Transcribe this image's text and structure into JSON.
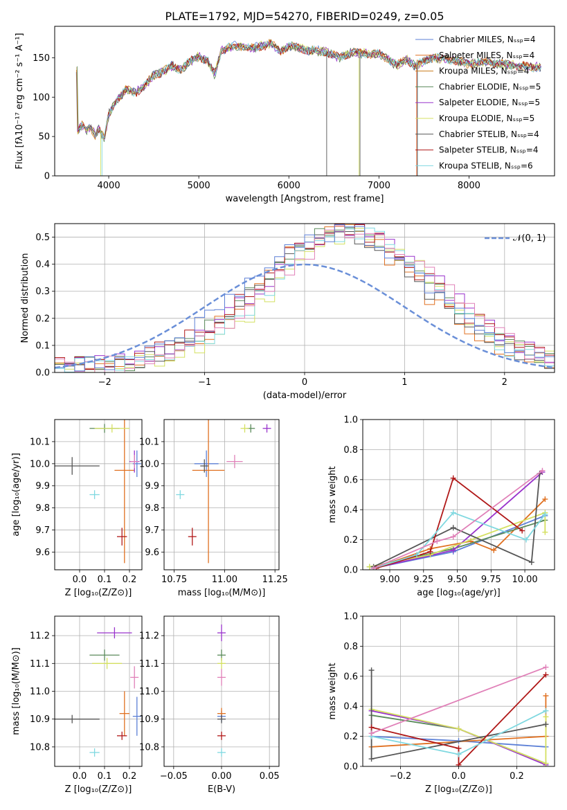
{
  "title": "PLATE=1792, MJD=54270, FIBERID=0249, z=0.05",
  "colors": {
    "c0": "#5b7fd6",
    "c1": "#e07020",
    "c2": "#c87a1a",
    "c3": "#5a8a5a",
    "c4": "#9932cc",
    "c5": "#d4e060",
    "c6": "#555555",
    "c7": "#b01818",
    "c8": "#7fd8e0",
    "c9": "#e080b8",
    "normal": "#6a8fd8",
    "grid": "#b0b0b0"
  },
  "chart_data": [
    {
      "type": "line",
      "xlabel": "wavelength [Angstrom, rest frame]",
      "ylabel": "Flux [fλ10⁻¹⁷ erg cm⁻² s⁻¹ A⁻¹]",
      "xlim": [
        3400,
        8950
      ],
      "ylim": [
        0,
        190
      ],
      "xticks": [
        "4000",
        "5000",
        "6000",
        "7000",
        "8000"
      ],
      "yticks": [
        "0",
        "50",
        "100",
        "150"
      ],
      "grid": false,
      "legend_position": "top-right",
      "legend": [
        "Chabrier MILES, Nₛₛₚ=4",
        "Salpeter MILES, Nₛₛₚ=4",
        "Kroupa MILES, Nₛₛₚ=4",
        "Chabrier ELODIE, Nₛₛₚ=5",
        "Salpeter ELODIE, Nₛₛₚ=5",
        "Kroupa ELODIE, Nₛₛₚ=5",
        "Chabrier STELIB, Nₛₛₚ=4",
        "Salpeter STELIB, Nₛₛₚ=4",
        "Kroupa STELIB, Nₛₛₚ=6"
      ],
      "spectrum_anchor_points": [
        [
          3650,
          55
        ],
        [
          3700,
          65
        ],
        [
          3750,
          58
        ],
        [
          3800,
          62
        ],
        [
          3850,
          52
        ],
        [
          3900,
          60
        ],
        [
          3950,
          45
        ],
        [
          4000,
          78
        ],
        [
          4100,
          98
        ],
        [
          4200,
          110
        ],
        [
          4300,
          106
        ],
        [
          4400,
          115
        ],
        [
          4500,
          128
        ],
        [
          4600,
          132
        ],
        [
          4700,
          140
        ],
        [
          4800,
          135
        ],
        [
          4900,
          145
        ],
        [
          5000,
          152
        ],
        [
          5100,
          146
        ],
        [
          5175,
          128
        ],
        [
          5250,
          160
        ],
        [
          5400,
          165
        ],
        [
          5600,
          162
        ],
        [
          5800,
          168
        ],
        [
          5900,
          158
        ],
        [
          6000,
          165
        ],
        [
          6200,
          160
        ],
        [
          6400,
          158
        ],
        [
          6563,
          150
        ],
        [
          6700,
          157
        ],
        [
          6900,
          155
        ],
        [
          7000,
          155
        ],
        [
          7100,
          148
        ],
        [
          7200,
          140
        ],
        [
          7300,
          148
        ],
        [
          7400,
          140
        ],
        [
          7600,
          150
        ],
        [
          7800,
          148
        ],
        [
          8000,
          142
        ],
        [
          8200,
          145
        ],
        [
          8500,
          140
        ],
        [
          8800,
          138
        ]
      ]
    },
    {
      "type": "bar",
      "xlabel": "(data-model)/error",
      "ylabel": "Normed distribution",
      "xlim": [
        -2.5,
        2.5
      ],
      "ylim": [
        0,
        0.55
      ],
      "xticks": [
        "−2",
        "−1",
        "0",
        "1",
        "2"
      ],
      "yticks": [
        "0.0",
        "0.1",
        "0.2",
        "0.3",
        "0.4",
        "0.5"
      ],
      "grid": true,
      "legend_position": "top-right",
      "legend": [
        "𝒩(0, 1)"
      ],
      "normal_curve": {
        "mean": 0,
        "sigma": 1
      },
      "histogram_bin_width": 0.1,
      "histogram_peak_approx": 0.5
    },
    {
      "type": "scatter",
      "xlabel": "Z [log₁₀(Z/Z⊙)]",
      "ylabel": "age  [log₁₀(age/yr)]",
      "xlim": [
        -0.1,
        0.25
      ],
      "ylim": [
        9.52,
        10.2
      ],
      "xticks": [
        "0.0",
        "0.1",
        "0.2"
      ],
      "yticks": [
        "9.6",
        "9.7",
        "9.8",
        "9.9",
        "10.0",
        "10.1"
      ],
      "grid": true,
      "points": [
        {
          "x": 0.23,
          "y": 10.0,
          "ex": 0.01,
          "ey": 0.06,
          "c": "c0"
        },
        {
          "x": 0.18,
          "y": 9.97,
          "ex": 0.04,
          "ey": 0.42,
          "c": "c1"
        },
        {
          "x": 0.1,
          "y": 10.16,
          "ex": 0.06,
          "ey": 0.02,
          "c": "c3"
        },
        {
          "x": 0.22,
          "y": 10.01,
          "ex": 0.02,
          "ey": 0.05,
          "c": "c4"
        },
        {
          "x": 0.13,
          "y": 10.16,
          "ex": 0.07,
          "ey": 0.01,
          "c": "c5"
        },
        {
          "x": -0.03,
          "y": 9.99,
          "ex": 0.11,
          "ey": 0.04,
          "c": "c6"
        },
        {
          "x": 0.17,
          "y": 9.67,
          "ex": 0.02,
          "ey": 0.04,
          "c": "c7"
        },
        {
          "x": 0.06,
          "y": 9.86,
          "ex": 0.02,
          "ey": 0.02,
          "c": "c8"
        },
        {
          "x": 0.22,
          "y": 10.01,
          "ex": 0.01,
          "ey": 0.03,
          "c": "c9"
        }
      ]
    },
    {
      "type": "scatter",
      "xlabel": "mass [log₁₀(M/M⊙)]",
      "ylabel": "",
      "xlim": [
        10.7,
        11.27
      ],
      "ylim": [
        9.52,
        10.2
      ],
      "xticks": [
        "10.75",
        "11.00",
        "11.25"
      ],
      "yticks": [
        "9.6",
        "9.7",
        "9.8",
        "9.9",
        "10.0",
        "10.1"
      ],
      "grid": true,
      "points": [
        {
          "x": 10.91,
          "y": 10.0,
          "ex": 0.06,
          "ey": 0.06,
          "c": "c0"
        },
        {
          "x": 10.92,
          "y": 9.97,
          "ex": 0.08,
          "ey": 0.42,
          "c": "c1"
        },
        {
          "x": 11.13,
          "y": 10.16,
          "ex": 0.02,
          "ey": 0.01,
          "c": "c3"
        },
        {
          "x": 11.21,
          "y": 10.16,
          "ex": 0.02,
          "ey": 0.01,
          "c": "c4"
        },
        {
          "x": 11.1,
          "y": 10.16,
          "ex": 0.02,
          "ey": 0.01,
          "c": "c5"
        },
        {
          "x": 10.9,
          "y": 9.99,
          "ex": 0.01,
          "ey": 0.03,
          "c": "c6"
        },
        {
          "x": 10.84,
          "y": 9.67,
          "ex": 0.01,
          "ey": 0.04,
          "c": "c7"
        },
        {
          "x": 10.78,
          "y": 9.86,
          "ex": 0.01,
          "ey": 0.02,
          "c": "c8"
        },
        {
          "x": 11.05,
          "y": 10.01,
          "ex": 0.04,
          "ey": 0.03,
          "c": "c9"
        }
      ]
    },
    {
      "type": "line",
      "xlabel": "age  [log₁₀(age/yr)]",
      "ylabel": "mass weight",
      "xlim": [
        8.8,
        10.22
      ],
      "ylim": [
        0,
        1.0
      ],
      "xticks": [
        "9.00",
        "9.25",
        "9.50",
        "9.75",
        "10.00"
      ],
      "yticks": [
        "0.0",
        "0.2",
        "0.4",
        "0.6",
        "0.8",
        "1.0"
      ],
      "grid": true,
      "series": [
        {
          "c": "c0",
          "x": [
            8.88,
            9.47,
            10.15
          ],
          "y": [
            0.01,
            0.12,
            0.36
          ]
        },
        {
          "c": "c1",
          "x": [
            8.88,
            9.3,
            9.6,
            9.77,
            10.15
          ],
          "y": [
            0.01,
            0.14,
            0.19,
            0.13,
            0.47
          ]
        },
        {
          "c": "c3",
          "x": [
            8.85,
            9.47,
            10.15
          ],
          "y": [
            0.02,
            0.14,
            0.33
          ]
        },
        {
          "c": "c4",
          "x": [
            8.88,
            9.47,
            10.13
          ],
          "y": [
            0.01,
            0.13,
            0.65
          ]
        },
        {
          "c": "c5",
          "x": [
            8.85,
            9.3,
            10.15,
            10.15
          ],
          "y": [
            0.02,
            0.1,
            0.38,
            0.25
          ]
        },
        {
          "c": "c6",
          "x": [
            8.88,
            9.47,
            10.05,
            10.11
          ],
          "y": [
            0.02,
            0.28,
            0.05,
            0.64
          ]
        },
        {
          "c": "c7",
          "x": [
            8.9,
            9.3,
            9.47,
            9.98
          ],
          "y": [
            0.01,
            0.12,
            0.61,
            0.26
          ]
        },
        {
          "c": "c8",
          "x": [
            8.88,
            9.2,
            9.47,
            10.01,
            10.15
          ],
          "y": [
            0.01,
            0.1,
            0.38,
            0.2,
            0.37
          ]
        },
        {
          "c": "c9",
          "x": [
            8.88,
            9.35,
            9.47,
            10.13
          ],
          "y": [
            0.01,
            0.19,
            0.22,
            0.66
          ]
        }
      ]
    },
    {
      "type": "scatter",
      "xlabel": "Z [log₁₀(Z/Z⊙)]",
      "ylabel": "mass [log₁₀(M/M⊙)]",
      "xlim": [
        -0.1,
        0.25
      ],
      "ylim": [
        10.73,
        11.27
      ],
      "xticks": [
        "0.0",
        "0.1",
        "0.2"
      ],
      "yticks": [
        "10.8",
        "10.9",
        "11.0",
        "11.1",
        "11.2"
      ],
      "grid": true,
      "points": [
        {
          "x": 0.23,
          "y": 10.91,
          "ex": 0.01,
          "ey": 0.07,
          "c": "c0"
        },
        {
          "x": 0.18,
          "y": 10.92,
          "ex": 0.02,
          "ey": 0.08,
          "c": "c1"
        },
        {
          "x": 0.1,
          "y": 11.13,
          "ex": 0.06,
          "ey": 0.02,
          "c": "c3"
        },
        {
          "x": 0.14,
          "y": 11.21,
          "ex": 0.07,
          "ey": 0.02,
          "c": "c4"
        },
        {
          "x": 0.11,
          "y": 11.1,
          "ex": 0.06,
          "ey": 0.02,
          "c": "c5"
        },
        {
          "x": -0.03,
          "y": 10.9,
          "ex": 0.11,
          "ey": 0.01,
          "c": "c6"
        },
        {
          "x": 0.17,
          "y": 10.84,
          "ex": 0.02,
          "ey": 0.01,
          "c": "c7"
        },
        {
          "x": 0.06,
          "y": 10.78,
          "ex": 0.02,
          "ey": 0.01,
          "c": "c8"
        },
        {
          "x": 0.22,
          "y": 11.05,
          "ex": 0.01,
          "ey": 0.04,
          "c": "c9"
        }
      ]
    },
    {
      "type": "scatter",
      "xlabel": "E(B-V)",
      "ylabel": "",
      "xlim": [
        -0.06,
        0.06
      ],
      "ylim": [
        10.73,
        11.27
      ],
      "xticks": [
        "−0.05",
        "0.00",
        "0.05"
      ],
      "yticks": [
        "10.8",
        "10.9",
        "11.0",
        "11.1",
        "11.2"
      ],
      "grid": true,
      "points": [
        {
          "x": 0.0,
          "y": 10.91,
          "ex": 0.0,
          "ey": 0.02,
          "c": "c0"
        },
        {
          "x": 0.0,
          "y": 10.92,
          "ex": 0.0,
          "ey": 0.02,
          "c": "c1"
        },
        {
          "x": 0.0,
          "y": 11.13,
          "ex": 0.0,
          "ey": 0.02,
          "c": "c3"
        },
        {
          "x": 0.0,
          "y": 11.21,
          "ex": 0.0,
          "ey": 0.03,
          "c": "c4"
        },
        {
          "x": 0.0,
          "y": 11.1,
          "ex": 0.0,
          "ey": 0.02,
          "c": "c5"
        },
        {
          "x": 0.0,
          "y": 10.9,
          "ex": 0.0,
          "ey": 0.01,
          "c": "c6"
        },
        {
          "x": 0.0,
          "y": 10.84,
          "ex": 0.0,
          "ey": 0.01,
          "c": "c7"
        },
        {
          "x": 0.0,
          "y": 10.78,
          "ex": 0.0,
          "ey": 0.01,
          "c": "c8"
        },
        {
          "x": 0.0,
          "y": 11.05,
          "ex": 0.0,
          "ey": 0.03,
          "c": "c9"
        }
      ]
    },
    {
      "type": "line",
      "xlabel": "Z [log₁₀(Z/Z⊙)]",
      "ylabel": "mass weight",
      "xlim": [
        -0.33,
        0.33
      ],
      "ylim": [
        0,
        1.0
      ],
      "xticks": [
        "−0.2",
        "0.0",
        "0.2"
      ],
      "yticks": [
        "0.0",
        "0.2",
        "0.4",
        "0.6",
        "0.8",
        "1.0"
      ],
      "grid": true,
      "series": [
        {
          "c": "c0",
          "x": [
            -0.3,
            0.0,
            0.3
          ],
          "y": [
            0.2,
            0.17,
            0.13
          ]
        },
        {
          "c": "c1",
          "x": [
            -0.3,
            0.3,
            0.3
          ],
          "y": [
            0.13,
            0.2,
            0.47
          ]
        },
        {
          "c": "c3",
          "x": [
            -0.3,
            0.0,
            0.3
          ],
          "y": [
            0.34,
            0.25,
            0.02
          ]
        },
        {
          "c": "c4",
          "x": [
            -0.3,
            0.0,
            0.3
          ],
          "y": [
            0.37,
            0.25,
            0.01
          ]
        },
        {
          "c": "c5",
          "x": [
            -0.3,
            0.0,
            0.3,
            0.3
          ],
          "y": [
            0.38,
            0.25,
            0.02,
            0.33
          ]
        },
        {
          "c": "c6",
          "x": [
            -0.3,
            -0.3,
            0.3
          ],
          "y": [
            0.64,
            0.05,
            0.28
          ]
        },
        {
          "c": "c7",
          "x": [
            -0.3,
            0.0,
            0.0,
            0.3
          ],
          "y": [
            0.26,
            0.12,
            0.01,
            0.61
          ]
        },
        {
          "c": "c8",
          "x": [
            -0.3,
            0.0,
            0.3
          ],
          "y": [
            0.2,
            0.08,
            0.37
          ]
        },
        {
          "c": "c9",
          "x": [
            -0.3,
            0.3
          ],
          "y": [
            0.22,
            0.66
          ]
        }
      ]
    }
  ]
}
